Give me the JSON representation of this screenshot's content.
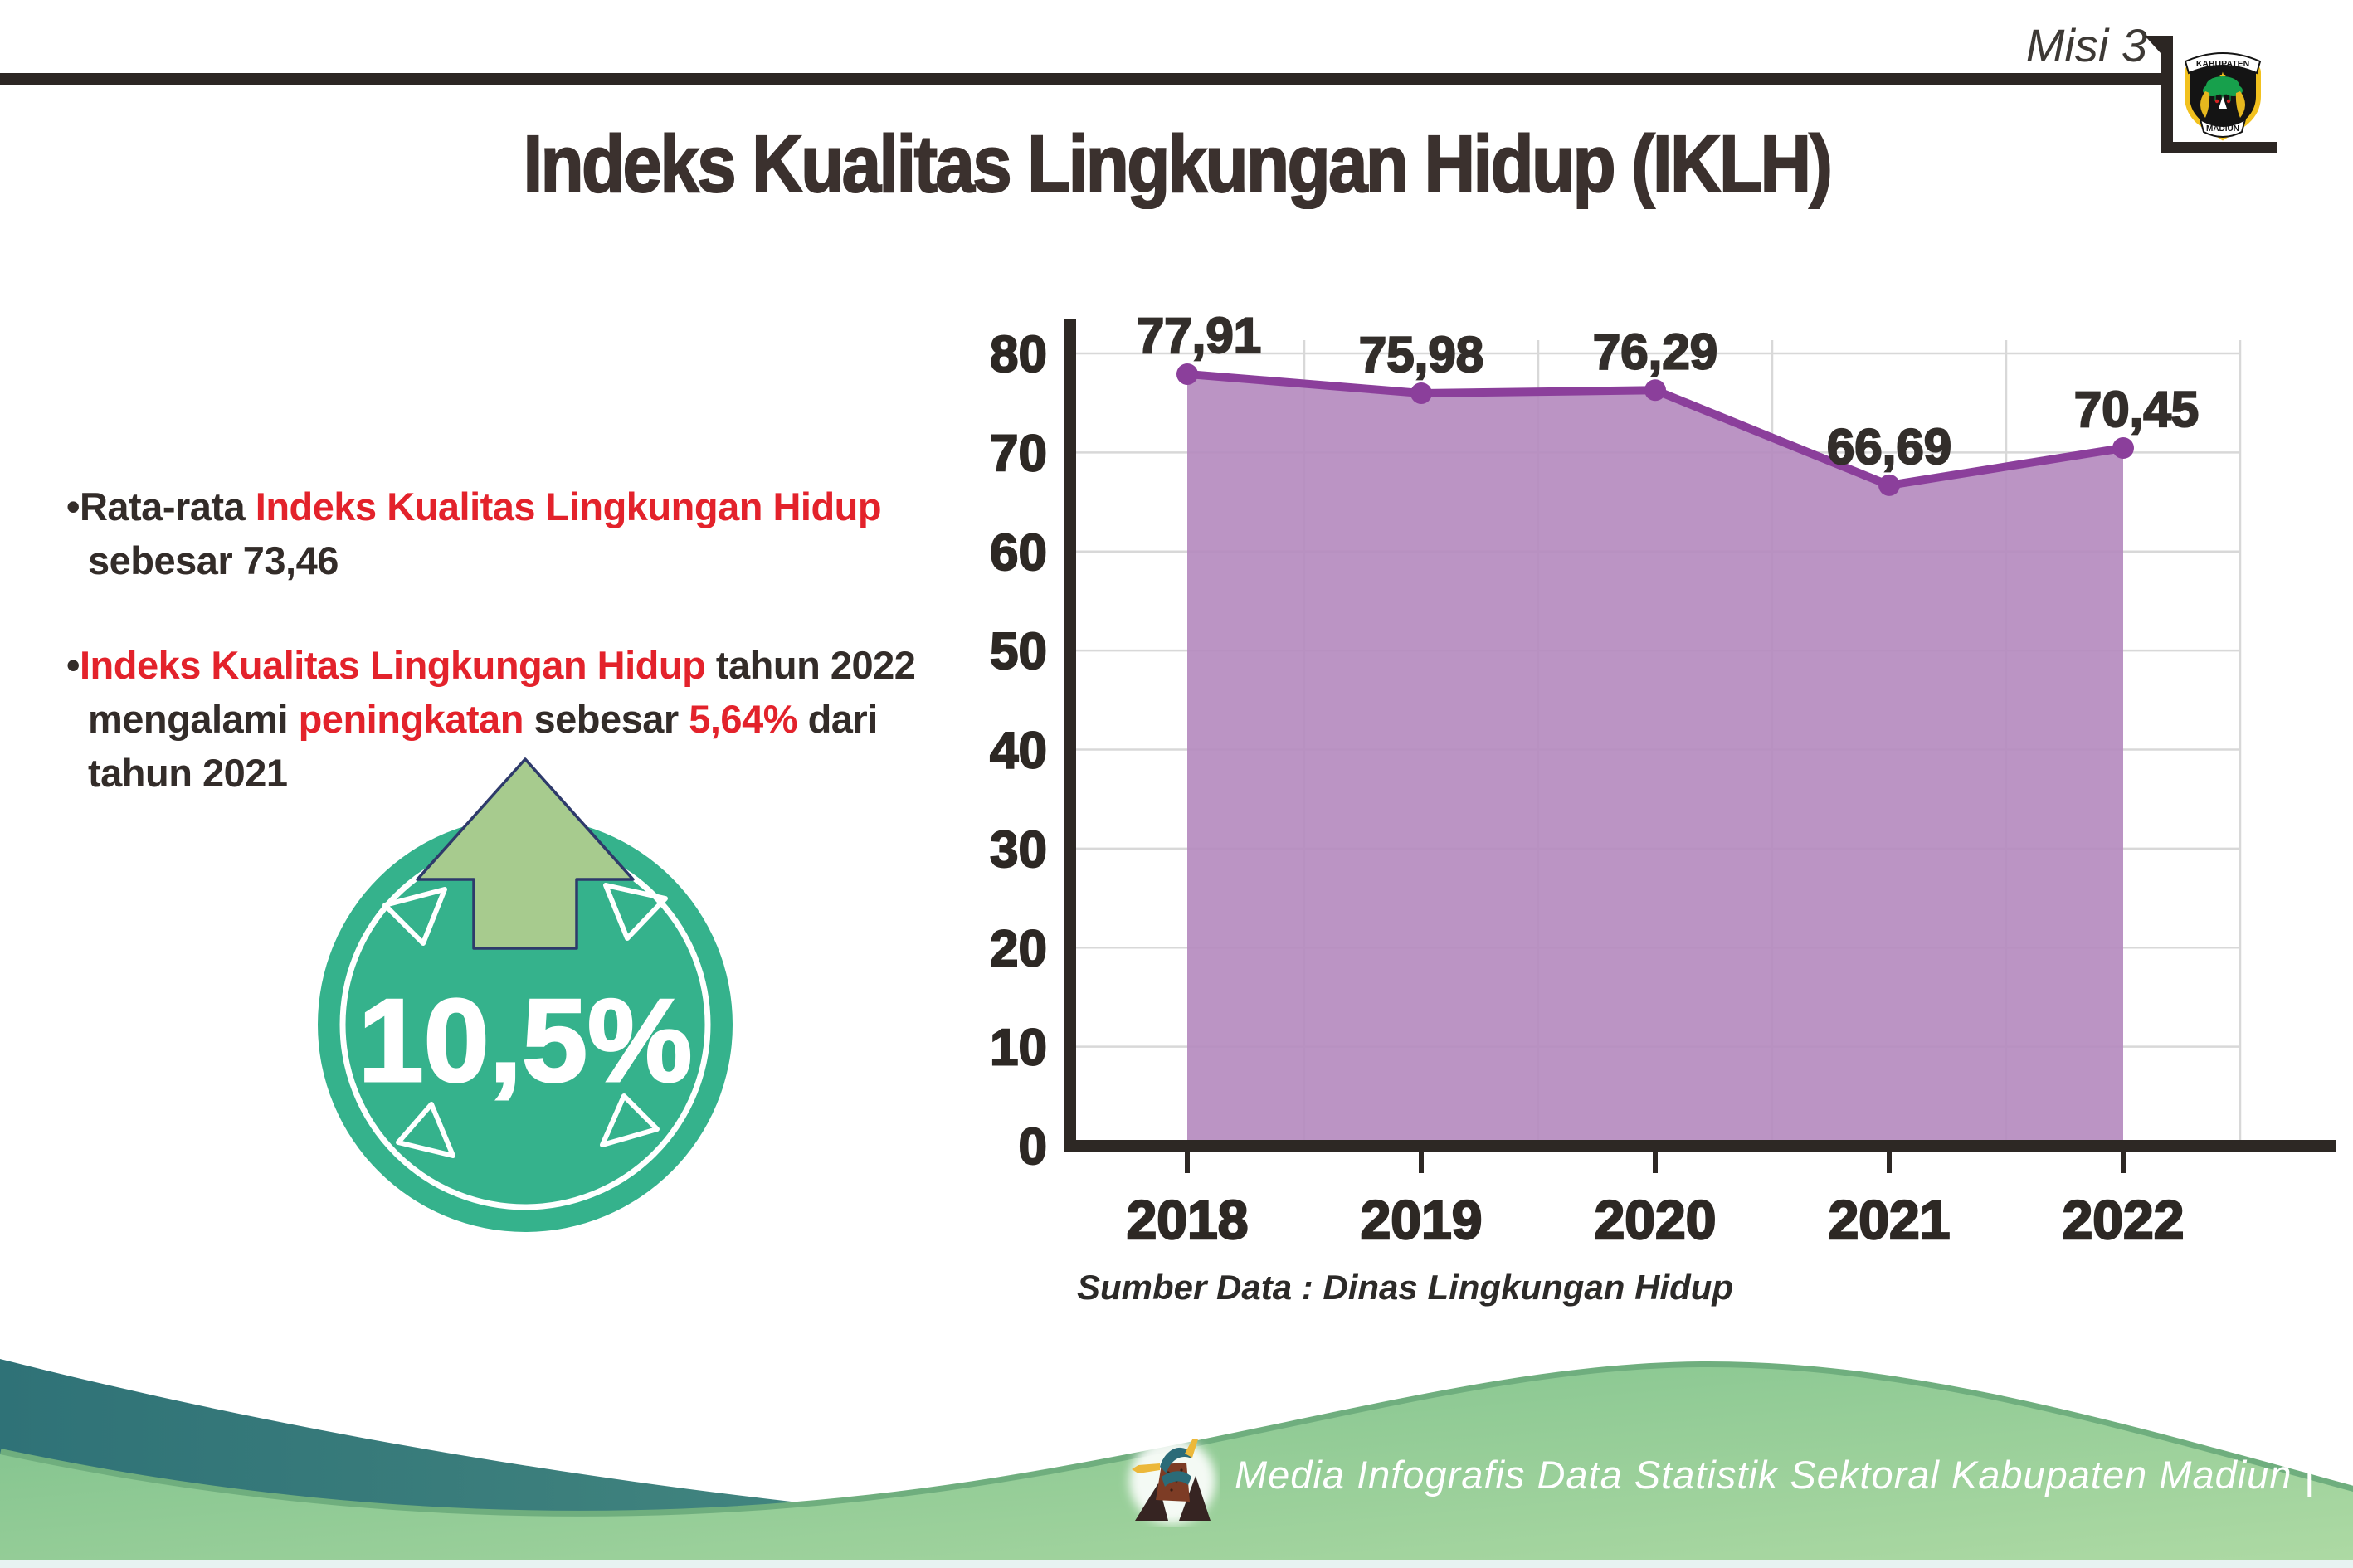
{
  "header": {
    "misi_label": "Misi 3",
    "title": "Indeks Kualitas Lingkungan Hidup (IKLH)",
    "logo_top": "KABUPATEN",
    "logo_bottom": "MADIUN"
  },
  "bullets": {
    "b1_s1": "•Rata-rata ",
    "b1_s2": "Indeks Kualitas Lingkungan Hidup",
    "b1_line2": "sebesar 73,46",
    "b2_s1": "•",
    "b2_s2": "Indeks Kualitas Lingkungan Hidup",
    "b2_s3": " tahun 2022",
    "b2_l2s1": "mengalami ",
    "b2_l2s2": "peningkatan",
    "b2_l2s3": " sebesar ",
    "b2_l2s4": "5,64%",
    "b2_l2s5": " dari",
    "b2_line3": "tahun 2021"
  },
  "badge": {
    "value": "10,5%"
  },
  "chart_data": {
    "type": "area",
    "categories": [
      "2018",
      "2019",
      "2020",
      "2021",
      "2022"
    ],
    "series": [
      {
        "name": "IKLH",
        "values": [
          77.91,
          75.98,
          76.29,
          66.69,
          70.45
        ]
      }
    ],
    "point_labels": [
      "77,91",
      "75,98",
      "76,29",
      "66,69",
      "70,45"
    ],
    "ylim": [
      0,
      85
    ],
    "yticks": [
      0,
      10,
      20,
      30,
      40,
      50,
      60,
      70,
      80
    ],
    "grid": true,
    "legend": "none",
    "line_color": "#8b3f9b",
    "fill_color": "#b58bbf",
    "label_color": "#332e2b",
    "axis_color": "#2d2824",
    "grid_color": "#d8d8d8"
  },
  "source_note": "Sumber Data : Dinas Lingkungan Hidup",
  "footer": {
    "credit": "Media Infografis Data Statistik Sektoral Kabupaten Madiun |"
  },
  "colors": {
    "accent_red": "#e3222b",
    "badge_teal": "#35b28c",
    "badge_arrow_green": "#a7cb8e",
    "footer_teal": "#35787b",
    "footer_green": "#84c48f"
  }
}
